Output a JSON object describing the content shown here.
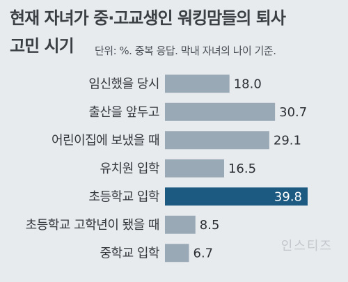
{
  "chart_data": {
    "type": "bar",
    "orientation": "horizontal",
    "title": "현재 자녀가 중·고교생인 워킹맘들의 퇴사 고민 시기",
    "title_line1": "현재 자녀가 중·고교생인 워킹맘들의 퇴사",
    "title_line2": "고민 시기",
    "subtitle": "단위: %. 중복 응답. 막내 자녀의 나이 기준.",
    "categories": [
      "임신했을 당시",
      "출산을 앞두고",
      "어린이집에 보냈을 때",
      "유치원 입학",
      "초등학교 입학",
      "초등학교 고학년이 됐을 때",
      "중학교 입학"
    ],
    "values": [
      18.0,
      30.7,
      29.1,
      16.5,
      39.8,
      8.5,
      6.7
    ],
    "value_labels": [
      "18.0",
      "30.7",
      "29.1",
      "16.5",
      "39.8",
      "8.5",
      "6.7"
    ],
    "highlight_index": 4,
    "xlim": [
      0,
      39.8
    ],
    "grid": false,
    "legend": "none",
    "colors": {
      "bar": "#9aa9b6",
      "highlight": "#1d5a82",
      "background": "#e8ebee",
      "title": "#3a3f44"
    }
  },
  "watermark": "인스티즈"
}
